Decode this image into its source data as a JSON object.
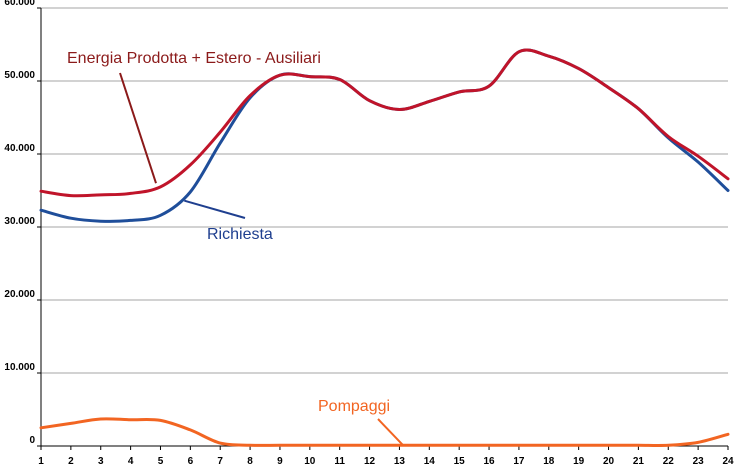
{
  "chart_data": {
    "type": "line",
    "title": "",
    "xlabel": "",
    "ylabel": "",
    "x": [
      1,
      2,
      3,
      4,
      5,
      6,
      7,
      8,
      9,
      10,
      11,
      12,
      13,
      14,
      15,
      16,
      17,
      18,
      19,
      20,
      21,
      22,
      23,
      24
    ],
    "xlim": [
      1,
      24
    ],
    "ylim": [
      0,
      60000
    ],
    "y_ticks": [
      0,
      10000,
      20000,
      30000,
      40000,
      50000,
      60000
    ],
    "y_tick_labels": [
      "0",
      "10.000",
      "20.000",
      "30.000",
      "40.000",
      "50.000",
      "60.000"
    ],
    "x_tick_labels": [
      "1",
      "2",
      "3",
      "4",
      "5",
      "6",
      "7",
      "8",
      "9",
      "10",
      "11",
      "12",
      "13",
      "14",
      "15",
      "16",
      "17",
      "18",
      "19",
      "20",
      "21",
      "22",
      "23",
      "24"
    ],
    "grid": {
      "horizontal": true,
      "vertical": false
    },
    "series": [
      {
        "name": "Energia Prodotta + Estero - Ausiliari",
        "color": "#C0142A",
        "values": [
          34900,
          34300,
          34400,
          34600,
          35500,
          38500,
          43000,
          48000,
          50800,
          50600,
          50200,
          47300,
          46100,
          47200,
          48500,
          49300,
          54000,
          53400,
          51700,
          49100,
          46200,
          42400,
          39700,
          36600
        ]
      },
      {
        "name": "Richiesta",
        "color": "#1F4E9A",
        "values": [
          32300,
          31200,
          30800,
          30900,
          31600,
          34800,
          41500,
          47700,
          50800,
          50600,
          50200,
          47300,
          46100,
          47200,
          48500,
          49300,
          54000,
          53400,
          51700,
          49100,
          46200,
          42200,
          38900,
          35000
        ]
      },
      {
        "name": "Pompaggi",
        "color": "#F26522",
        "values": [
          2500,
          3100,
          3700,
          3600,
          3500,
          2200,
          400,
          100,
          100,
          100,
          100,
          100,
          100,
          100,
          100,
          100,
          100,
          100,
          100,
          100,
          100,
          100,
          500,
          1600
        ]
      }
    ],
    "annotations": [
      {
        "text": "Energia Prodotta + Estero - Ausiliari",
        "color": "#8B1A1A",
        "series": 0,
        "points_to_x": 4.85,
        "points_to_y": 36000
      },
      {
        "text": "Richiesta",
        "color": "#1F3F8F",
        "series": 1,
        "points_to_x": 5.8,
        "points_to_y": 33600
      },
      {
        "text": "Pompaggi",
        "color": "#F26522",
        "series": 2,
        "points_to_x": 13.1,
        "points_to_y": 200
      }
    ]
  }
}
